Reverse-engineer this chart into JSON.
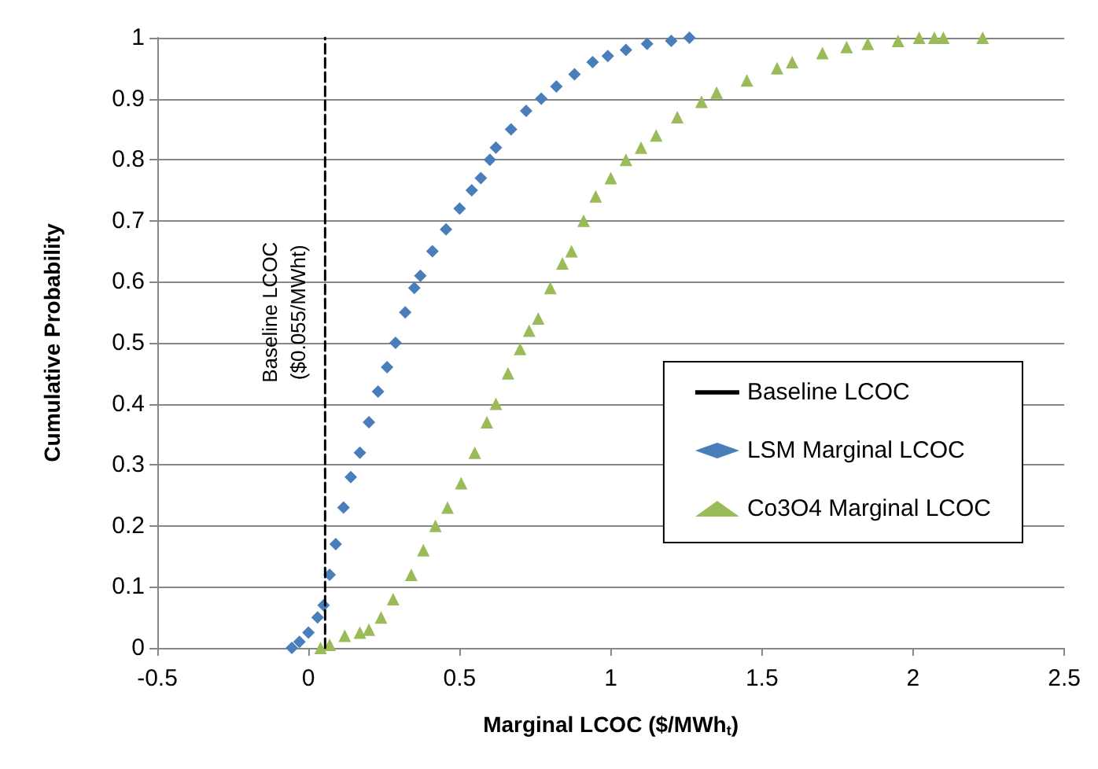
{
  "chart_data": {
    "type": "scatter",
    "xlabel": "Marginal LCOC ($/MWh$_{t}$)",
    "ylabel": "Cumulative Probability",
    "xlim": [
      -0.5,
      2.5
    ],
    "xticks": [
      -0.5,
      0,
      0.5,
      1,
      1.5,
      2,
      2.5
    ],
    "ylim": [
      0,
      1
    ],
    "yticks": [
      0,
      0.1,
      0.2,
      0.3,
      0.4,
      0.5,
      0.6,
      0.7,
      0.8,
      0.9,
      1
    ],
    "grid": "y",
    "legend": "right",
    "annotations": [
      {
        "text": "Baseline LCOC\n($0.055/MWht)",
        "x": 0.055,
        "y": 0.55
      }
    ],
    "series": [
      {
        "name": "Baseline LCOC",
        "type": "line",
        "color": "#000000",
        "line_style": "dashed",
        "marker": "none",
        "x": [
          0.055,
          0.055
        ],
        "values": [
          0,
          1
        ]
      },
      {
        "name": "LSM Marginal LCOC",
        "color": "#4a7ebb",
        "marker": "diamond",
        "x": [
          -0.055,
          -0.03,
          0.0,
          0.03,
          0.05,
          0.07,
          0.09,
          0.116,
          0.14,
          0.17,
          0.2,
          0.23,
          0.26,
          0.288,
          0.32,
          0.35,
          0.37,
          0.41,
          0.455,
          0.5,
          0.54,
          0.57,
          0.6,
          0.62,
          0.67,
          0.72,
          0.77,
          0.82,
          0.88,
          0.94,
          0.99,
          1.05,
          1.12,
          1.2,
          1.26
        ],
        "values": [
          0,
          0.01,
          0.025,
          0.05,
          0.07,
          0.12,
          0.17,
          0.23,
          0.28,
          0.32,
          0.37,
          0.42,
          0.46,
          0.5,
          0.55,
          0.59,
          0.61,
          0.65,
          0.686,
          0.72,
          0.75,
          0.77,
          0.8,
          0.82,
          0.85,
          0.88,
          0.9,
          0.92,
          0.94,
          0.96,
          0.97,
          0.98,
          0.99,
          0.995,
          1.0
        ]
      },
      {
        "name": "Co3O4 Marginal LCOC",
        "color": "#9bbb59",
        "marker": "triangle",
        "x": [
          0.04,
          0.07,
          0.12,
          0.17,
          0.2,
          0.24,
          0.28,
          0.34,
          0.38,
          0.42,
          0.46,
          0.505,
          0.55,
          0.59,
          0.62,
          0.66,
          0.7,
          0.73,
          0.76,
          0.8,
          0.84,
          0.87,
          0.91,
          0.95,
          1.0,
          1.05,
          1.1,
          1.15,
          1.22,
          1.3,
          1.35,
          1.45,
          1.55,
          1.6,
          1.7,
          1.78,
          1.85,
          1.95,
          2.02,
          2.07,
          2.1,
          2.23
        ],
        "values": [
          0,
          0.005,
          0.02,
          0.025,
          0.03,
          0.05,
          0.08,
          0.12,
          0.16,
          0.2,
          0.23,
          0.27,
          0.32,
          0.37,
          0.4,
          0.45,
          0.49,
          0.52,
          0.54,
          0.59,
          0.63,
          0.65,
          0.7,
          0.74,
          0.77,
          0.8,
          0.82,
          0.84,
          0.87,
          0.895,
          0.91,
          0.93,
          0.95,
          0.96,
          0.975,
          0.985,
          0.99,
          0.995,
          1.0,
          1.0,
          1.0,
          1.0
        ]
      }
    ]
  }
}
